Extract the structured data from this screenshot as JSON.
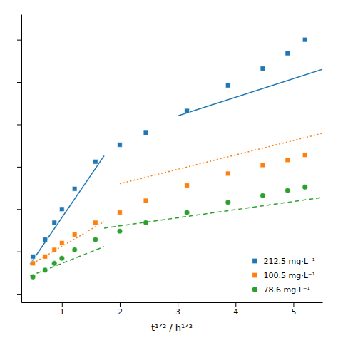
{
  "chart_data": {
    "type": "scatter",
    "xlabel": "t¹ᐟ² / h¹ᐟ²",
    "xlim": [
      0.3,
      5.5
    ],
    "ylim": [
      -5,
      165
    ],
    "xticks": [
      1,
      2,
      3,
      4,
      5
    ],
    "yticks": [
      0,
      25,
      50,
      75,
      100,
      125,
      150
    ],
    "tick_labels": "x",
    "legend": "lower right",
    "series": [
      {
        "name": "212.5 mg·L⁻¹",
        "marker": "square",
        "line_style": "solid",
        "x": [
          0.5,
          0.71,
          0.87,
          1.0,
          1.22,
          1.58,
          2.0,
          2.45,
          3.16,
          3.87,
          4.47,
          4.9,
          5.2
        ],
        "values": [
          22,
          32,
          42,
          50,
          62,
          78,
          88,
          95,
          108,
          123,
          133,
          142,
          150
        ],
        "fit_lines": [
          {
            "x": [
              0.45,
              1.73
            ],
            "values": [
              17.5,
              81.5
            ]
          },
          {
            "x": [
              3.0,
              5.5
            ],
            "values": [
              105,
              132.5
            ]
          }
        ]
      },
      {
        "name": "100.5 mg·L⁻¹",
        "marker": "square",
        "line_style": "dotted",
        "x": [
          0.5,
          0.71,
          0.87,
          1.0,
          1.22,
          1.58,
          2.0,
          2.45,
          3.16,
          3.87,
          4.47,
          4.9,
          5.2
        ],
        "values": [
          18,
          22,
          26,
          30,
          35,
          42,
          48,
          55,
          64,
          71,
          76,
          79,
          82
        ],
        "fit_lines": [
          {
            "x": [
              0.45,
              1.73
            ],
            "values": [
              17,
              42.6
            ]
          },
          {
            "x": [
              2.0,
              5.5
            ],
            "values": [
              65,
              94.75
            ]
          }
        ]
      },
      {
        "name": "78.6 mg·L⁻¹",
        "marker": "circle",
        "line_style": "dashed",
        "x": [
          0.5,
          0.71,
          0.87,
          1.0,
          1.22,
          1.58,
          2.0,
          2.45,
          3.16,
          3.87,
          4.47,
          4.9,
          5.2
        ],
        "values": [
          10,
          14,
          18,
          21,
          26,
          32,
          37,
          42,
          48,
          54,
          58,
          61,
          63
        ],
        "fit_lines": [
          {
            "x": [
              0.45,
              1.73
            ],
            "values": [
              10.575,
              27.855
            ]
          },
          {
            "x": [
              1.73,
              5.5
            ],
            "values": [
              38.804,
              56.9
            ]
          }
        ]
      }
    ]
  }
}
